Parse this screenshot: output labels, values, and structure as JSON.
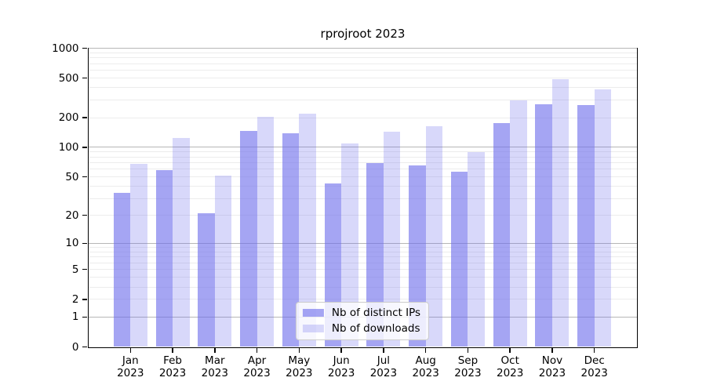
{
  "chart_data": {
    "type": "bar",
    "title": "rprojroot 2023",
    "categories": [
      "Jan",
      "Feb",
      "Mar",
      "Apr",
      "May",
      "Jun",
      "Jul",
      "Aug",
      "Sep",
      "Oct",
      "Nov",
      "Dec"
    ],
    "x_axis": {
      "tick_label_year": "2023"
    },
    "series": [
      {
        "name": "Nb of distinct IPs",
        "color": "rgba(110,110,235,0.62)",
        "values": [
          34,
          59,
          21,
          146,
          140,
          43,
          69,
          65,
          57,
          175,
          272,
          268
        ]
      },
      {
        "name": "Nb of downloads",
        "color": "rgba(110,110,235,0.27)",
        "values": [
          68,
          125,
          52,
          205,
          218,
          110,
          144,
          165,
          90,
          300,
          485,
          385
        ]
      }
    ],
    "y_axis": {
      "scale": "log1p",
      "ticks": [
        0,
        1,
        2,
        5,
        10,
        20,
        50,
        100,
        200,
        500,
        1000
      ],
      "max": 1000
    },
    "legend_position": "lower center",
    "grid": {
      "orientation": "horizontal",
      "major_color": "#b6b6b6",
      "minor_color": "#ececec"
    }
  }
}
